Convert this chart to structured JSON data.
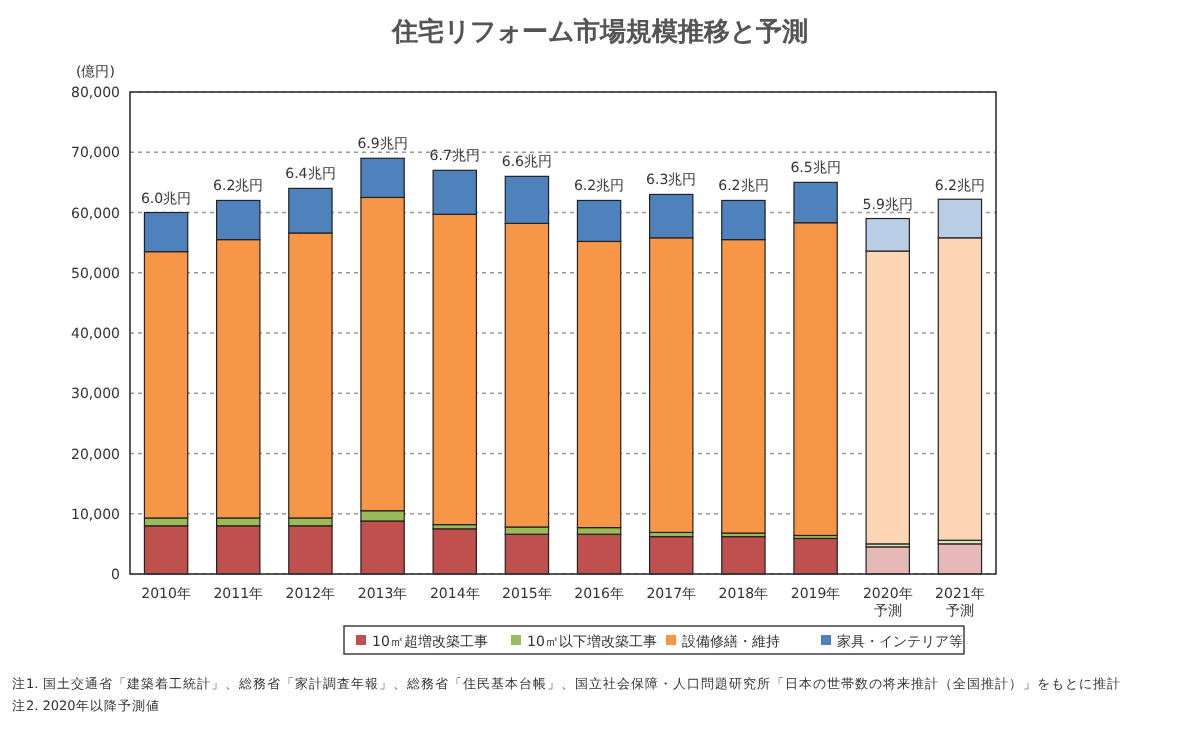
{
  "chart_data": {
    "type": "bar",
    "stacked": true,
    "title": "住宅リフォーム市場規模推移と予測",
    "ylabel": "(億円)",
    "categories": [
      "2010年",
      "2011年",
      "2012年",
      "2013年",
      "2014年",
      "2015年",
      "2016年",
      "2017年",
      "2018年",
      "2019年",
      "2020年予測",
      "2021年予測"
    ],
    "series": [
      {
        "name": "10㎡超増改築工事",
        "color": "#c0504d",
        "colors": [
          "#c0504d",
          "#c0504d",
          "#c0504d",
          "#c0504d",
          "#c0504d",
          "#c0504d",
          "#c0504d",
          "#c0504d",
          "#c0504d",
          "#c0504d",
          "#e6b9b8",
          "#e6b9b8"
        ],
        "values": [
          8000,
          8000,
          8000,
          8800,
          7500,
          6600,
          6600,
          6200,
          6200,
          5900,
          4500,
          5000
        ]
      },
      {
        "name": "10㎡以下増改築工事",
        "color": "#9bbb59",
        "colors": [
          "#9bbb59",
          "#9bbb59",
          "#9bbb59",
          "#9bbb59",
          "#9bbb59",
          "#9bbb59",
          "#9bbb59",
          "#9bbb59",
          "#9bbb59",
          "#9bbb59",
          "#d7e4bc",
          "#d7e4bc"
        ],
        "values": [
          1300,
          1300,
          1300,
          1700,
          700,
          1200,
          1100,
          700,
          600,
          500,
          500,
          600
        ]
      },
      {
        "name": "設備修繕・維持",
        "color": "#f79646",
        "colors": [
          "#f79646",
          "#f79646",
          "#f79646",
          "#f79646",
          "#f79646",
          "#f79646",
          "#f79646",
          "#f79646",
          "#f79646",
          "#f79646",
          "#fcd5b4",
          "#fcd5b4"
        ],
        "values": [
          44200,
          46200,
          47300,
          52000,
          51500,
          50400,
          47500,
          48900,
          48700,
          51900,
          48600,
          50200
        ]
      },
      {
        "name": "家具・インテリア等",
        "color": "#4f81bd",
        "colors": [
          "#4f81bd",
          "#4f81bd",
          "#4f81bd",
          "#4f81bd",
          "#4f81bd",
          "#4f81bd",
          "#4f81bd",
          "#4f81bd",
          "#4f81bd",
          "#4f81bd",
          "#b9cde5",
          "#b9cde5"
        ],
        "values": [
          6500,
          6500,
          7400,
          6500,
          7300,
          7800,
          6800,
          7200,
          6500,
          6700,
          5400,
          6400
        ]
      }
    ],
    "ylim": [
      0,
      80000
    ],
    "yticks": [
      {
        "value": 0,
        "label": "0"
      },
      {
        "value": 10000,
        "label": "10,000"
      },
      {
        "value": 20000,
        "label": "20,000"
      },
      {
        "value": 30000,
        "label": "30,000"
      },
      {
        "value": 40000,
        "label": "40,000"
      },
      {
        "value": 50000,
        "label": "50,000"
      },
      {
        "value": 60000,
        "label": "60,000"
      },
      {
        "value": 70000,
        "label": "70,000"
      },
      {
        "value": 80000,
        "label": "80,000"
      }
    ],
    "grid": "y",
    "legend": "bottom",
    "annotations": [
      {
        "text": "6.0兆円",
        "x": "2010年",
        "y": 60000
      },
      {
        "text": "6.2兆円",
        "x": "2011年",
        "y": 62000
      },
      {
        "text": "6.4兆円",
        "x": "2012年",
        "y": 64000
      },
      {
        "text": "6.9兆円",
        "x": "2013年",
        "y": 69000
      },
      {
        "text": "6.7兆円",
        "x": "2014年",
        "y": 67000
      },
      {
        "text": "6.6兆円",
        "x": "2015年",
        "y": 66000
      },
      {
        "text": "6.2兆円",
        "x": "2016年",
        "y": 62000
      },
      {
        "text": "6.3兆円",
        "x": "2017年",
        "y": 63000
      },
      {
        "text": "6.2兆円",
        "x": "2018年",
        "y": 62000
      },
      {
        "text": "6.5兆円",
        "x": "2019年",
        "y": 65000
      },
      {
        "text": "5.9兆円",
        "x": "2020年予測",
        "y": 59000
      },
      {
        "text": "6.2兆円",
        "x": "2021年予測",
        "y": 62000
      },
      "注1. 国土交通省「建築着工統計」、総務省「家計調査年報」、総務省「住民基本台帳」、国立社会保障・人口問題研究所「日本の世帯数の将来推計（全国推計）」をもとに推計",
      "注2. 2020年以降予測値"
    ]
  }
}
